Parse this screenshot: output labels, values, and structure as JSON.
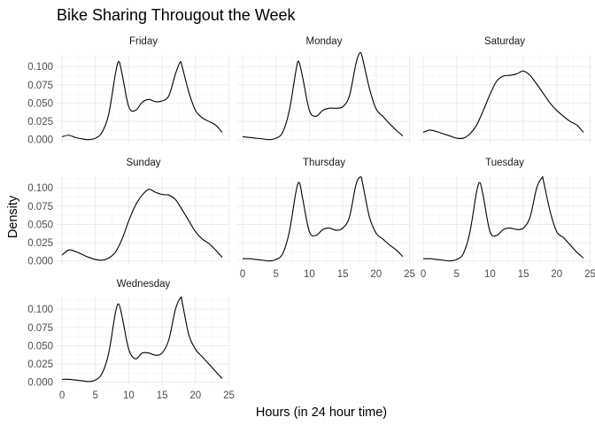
{
  "chart_data": {
    "type": "line",
    "title": "Bike Sharing Througout the Week",
    "xlabel": "Hours (in 24 hour time)",
    "ylabel": "Density",
    "xlim": [
      0,
      24
    ],
    "ylim": [
      0,
      0.116
    ],
    "x_ticks": [
      "0",
      "5",
      "10",
      "15",
      "20",
      "25"
    ],
    "y_ticks": [
      "0.000",
      "0.025",
      "0.050",
      "0.075",
      "0.100"
    ],
    "grid": true,
    "facets": [
      {
        "name": "Friday",
        "x": [
          0,
          1,
          2,
          3,
          4,
          5,
          6,
          7,
          8,
          8.5,
          9,
          10,
          11,
          12,
          13,
          14,
          15,
          16,
          17,
          17.7,
          18,
          19,
          20,
          21,
          22,
          23,
          24
        ],
        "y": [
          0.004,
          0.006,
          0.003,
          0.001,
          0.0,
          0.002,
          0.01,
          0.035,
          0.09,
          0.107,
          0.09,
          0.045,
          0.04,
          0.051,
          0.055,
          0.052,
          0.053,
          0.06,
          0.09,
          0.106,
          0.1,
          0.065,
          0.04,
          0.03,
          0.025,
          0.02,
          0.01
        ]
      },
      {
        "name": "Monday",
        "x": [
          0,
          1,
          2,
          3,
          4,
          5,
          6,
          7,
          8,
          8.4,
          9,
          10,
          11,
          12,
          13,
          14,
          15,
          16,
          17,
          17.6,
          18,
          19,
          20,
          21,
          22,
          23,
          24
        ],
        "y": [
          0.004,
          0.003,
          0.002,
          0.001,
          0.0,
          0.002,
          0.01,
          0.04,
          0.095,
          0.107,
          0.085,
          0.04,
          0.032,
          0.04,
          0.043,
          0.043,
          0.045,
          0.06,
          0.105,
          0.119,
          0.11,
          0.07,
          0.042,
          0.032,
          0.022,
          0.013,
          0.005
        ]
      },
      {
        "name": "Saturday",
        "x": [
          0,
          1,
          2,
          3,
          4,
          5,
          6,
          7,
          8,
          9,
          10,
          11,
          12,
          13,
          14,
          15,
          16,
          17,
          18,
          19,
          20,
          21,
          22,
          23,
          24
        ],
        "y": [
          0.01,
          0.013,
          0.011,
          0.008,
          0.005,
          0.002,
          0.002,
          0.008,
          0.02,
          0.04,
          0.062,
          0.08,
          0.087,
          0.088,
          0.09,
          0.094,
          0.088,
          0.076,
          0.063,
          0.05,
          0.04,
          0.032,
          0.025,
          0.02,
          0.01
        ]
      },
      {
        "name": "Sunday",
        "x": [
          0,
          1,
          2,
          3,
          4,
          5,
          6,
          7,
          8,
          9,
          10,
          11,
          12,
          13,
          14,
          15,
          16,
          17,
          18,
          19,
          20,
          21,
          22,
          23,
          24
        ],
        "y": [
          0.008,
          0.015,
          0.013,
          0.009,
          0.005,
          0.002,
          0.001,
          0.004,
          0.012,
          0.03,
          0.055,
          0.076,
          0.09,
          0.098,
          0.094,
          0.091,
          0.09,
          0.084,
          0.07,
          0.055,
          0.04,
          0.03,
          0.024,
          0.015,
          0.005
        ]
      },
      {
        "name": "Thursday",
        "x": [
          0,
          1,
          2,
          3,
          4,
          5,
          6,
          7,
          8,
          8.5,
          9,
          10,
          11,
          12,
          13,
          14,
          15,
          16,
          17,
          17.7,
          18,
          19,
          20,
          21,
          22,
          23,
          24
        ],
        "y": [
          0.003,
          0.003,
          0.002,
          0.001,
          0.0,
          0.002,
          0.01,
          0.04,
          0.095,
          0.107,
          0.085,
          0.04,
          0.035,
          0.043,
          0.045,
          0.042,
          0.045,
          0.06,
          0.105,
          0.115,
          0.105,
          0.06,
          0.038,
          0.03,
          0.022,
          0.015,
          0.006
        ]
      },
      {
        "name": "Tuesday",
        "x": [
          0,
          1,
          2,
          3,
          4,
          5,
          6,
          7,
          8,
          8.5,
          9,
          10,
          11,
          12,
          13,
          14,
          15,
          16,
          17,
          17.8,
          18,
          19,
          20,
          21,
          22,
          23,
          24
        ],
        "y": [
          0.003,
          0.003,
          0.002,
          0.001,
          0.0,
          0.002,
          0.01,
          0.04,
          0.095,
          0.107,
          0.088,
          0.04,
          0.035,
          0.043,
          0.045,
          0.043,
          0.045,
          0.06,
          0.1,
          0.114,
          0.11,
          0.068,
          0.04,
          0.032,
          0.022,
          0.012,
          0.004
        ]
      },
      {
        "name": "Wednesday",
        "x": [
          0,
          1,
          2,
          3,
          4,
          5,
          6,
          7,
          8,
          8.5,
          9,
          10,
          11,
          12,
          13,
          14,
          15,
          16,
          17,
          17.8,
          18,
          19,
          20,
          21,
          22,
          23,
          24
        ],
        "y": [
          0.004,
          0.004,
          0.003,
          0.002,
          0.001,
          0.003,
          0.012,
          0.04,
          0.095,
          0.107,
          0.09,
          0.045,
          0.032,
          0.04,
          0.04,
          0.037,
          0.04,
          0.058,
          0.1,
          0.116,
          0.11,
          0.065,
          0.045,
          0.035,
          0.025,
          0.015,
          0.005
        ]
      }
    ]
  }
}
